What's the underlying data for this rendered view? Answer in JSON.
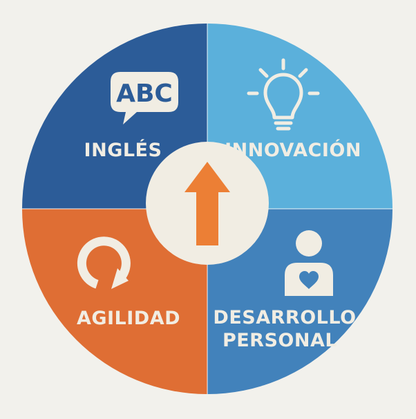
{
  "diagram": {
    "center_icon": "up-arrow-icon",
    "quadrants": [
      {
        "id": "ingles",
        "label": "INGLÉS",
        "icon": "speech-bubble-abc-icon",
        "icon_text": "ABC",
        "color": "#2c5c98"
      },
      {
        "id": "innovacion",
        "label": "INNOVACIÓN",
        "icon": "lightbulb-icon",
        "color": "#5bb0db"
      },
      {
        "id": "agilidad",
        "label": "AGILIDAD",
        "icon": "refresh-cycle-icon",
        "color": "#df6e34"
      },
      {
        "id": "desarrollo",
        "label_lines": [
          "DESARROLLO",
          "PERSONAL"
        ],
        "icon": "person-heart-icon",
        "color": "#4282bb"
      }
    ],
    "colors": {
      "background": "#f2f1ec",
      "cream": "#f1ede3",
      "arrow": "#ec7f35",
      "divider": "#ffffff"
    }
  }
}
